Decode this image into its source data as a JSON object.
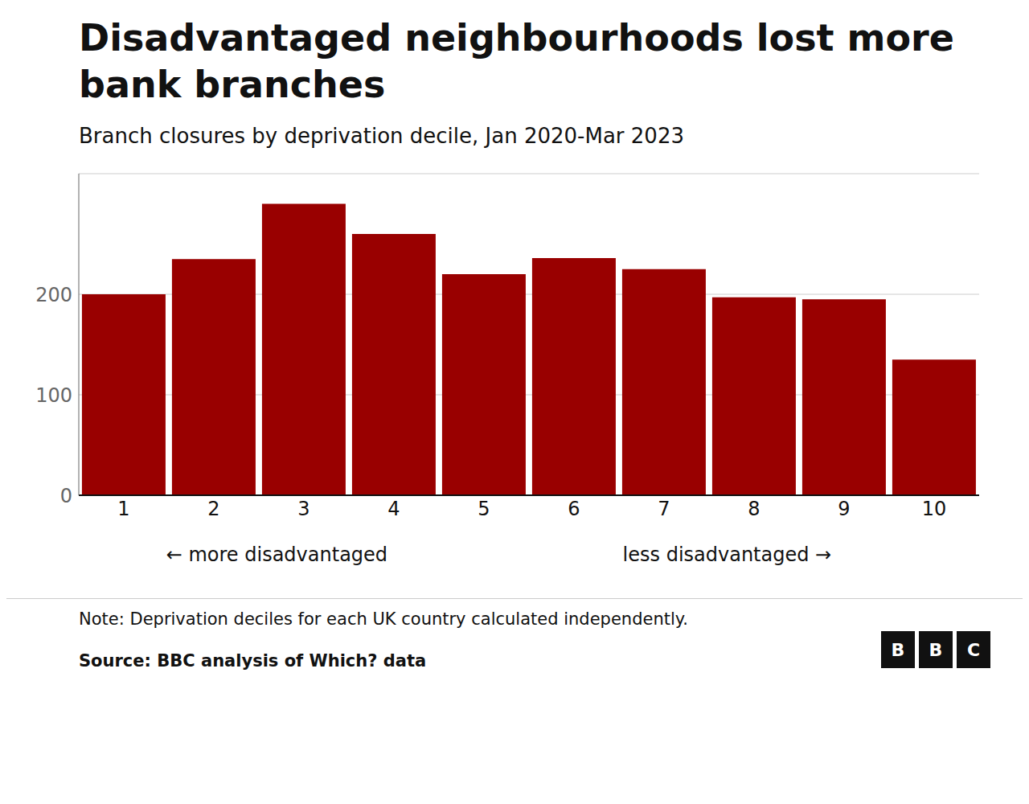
{
  "chart_data": {
    "type": "bar",
    "title": "Disadvantaged neighbourhoods lost more\nbank branches",
    "subtitle": "Branch closures by deprivation decile, Jan 2020-Mar 2023",
    "categories": [
      1,
      2,
      3,
      4,
      5,
      6,
      7,
      8,
      9,
      10
    ],
    "values": [
      200,
      235,
      290,
      260,
      220,
      236,
      225,
      197,
      195,
      135
    ],
    "color": "#990000",
    "ylim": [
      0,
      320
    ],
    "yticks": [
      0,
      100,
      200
    ],
    "grid": true,
    "annotations": [
      "← more disadvantaged",
      "less disadvantaged →",
      "BBC"
    ],
    "note": "Note: Deprivation deciles for each UK country calculated independently.",
    "source": "Source: BBC analysis of Which? data"
  }
}
